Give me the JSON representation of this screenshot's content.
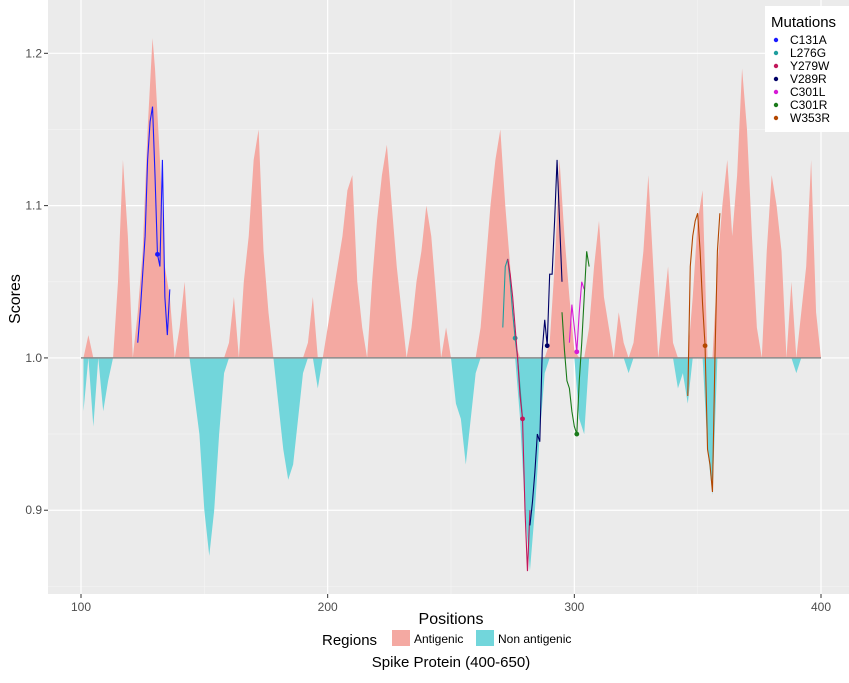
{
  "chart_data": {
    "type": "area",
    "title": "Spike Protein (400-650)",
    "xlabel": "Positions",
    "ylabel": "Scores",
    "xlim": [
      100,
      400
    ],
    "ylim": [
      0.845,
      1.235
    ],
    "baseline": 1.0,
    "grid": true,
    "x_ticks": [
      "100",
      "200",
      "300",
      "400"
    ],
    "y_ticks": [
      "0.9",
      "1.0",
      "1.1",
      "1.2"
    ],
    "x_tick_values": [
      100,
      200,
      300,
      400
    ],
    "y_tick_values": [
      0.9,
      1.0,
      1.1,
      1.2
    ],
    "regions": {
      "title": "Regions",
      "entries": [
        {
          "name": "Antigenic",
          "color": "#f4a9a2"
        },
        {
          "name": "Non antigenic",
          "color": "#72d6db"
        }
      ]
    },
    "scores": {
      "x": [
        101,
        103,
        105,
        107,
        109,
        111,
        113,
        115,
        117,
        119,
        121,
        123,
        125,
        127,
        129,
        130,
        132,
        134,
        136,
        138,
        140,
        142,
        144,
        146,
        148,
        150,
        152,
        154,
        156,
        158,
        160,
        162,
        164,
        166,
        168,
        170,
        172,
        174,
        176,
        178,
        180,
        182,
        184,
        186,
        188,
        190,
        192,
        194,
        196,
        198,
        200,
        202,
        204,
        206,
        208,
        210,
        212,
        214,
        216,
        218,
        220,
        222,
        224,
        226,
        228,
        230,
        232,
        234,
        236,
        238,
        240,
        242,
        244,
        246,
        248,
        250,
        252,
        254,
        256,
        258,
        260,
        262,
        264,
        266,
        268,
        270,
        272,
        274,
        276,
        278,
        280,
        282,
        284,
        286,
        288,
        290,
        292,
        294,
        296,
        298,
        300,
        302,
        304,
        306,
        308,
        310,
        312,
        314,
        316,
        318,
        320,
        322,
        324,
        326,
        328,
        330,
        332,
        334,
        336,
        338,
        340,
        342,
        344,
        346,
        348,
        350,
        352,
        354,
        356,
        358,
        360,
        362,
        364,
        366,
        368,
        370,
        372,
        374,
        376,
        378,
        380,
        382,
        384,
        386,
        388,
        390,
        392,
        394,
        396,
        398,
        400
      ],
      "y": [
        0.965,
        1.015,
        0.955,
        1.0,
        0.965,
        0.985,
        1.0,
        1.05,
        1.13,
        1.08,
        1.0,
        1.03,
        1.07,
        1.15,
        1.21,
        1.19,
        1.13,
        1.06,
        1.04,
        1.0,
        1.02,
        1.05,
        1.0,
        0.975,
        0.95,
        0.9,
        0.87,
        0.9,
        0.95,
        0.99,
        1.01,
        1.04,
        1.0,
        1.05,
        1.08,
        1.13,
        1.15,
        1.07,
        1.03,
        1.0,
        0.97,
        0.94,
        0.92,
        0.93,
        0.96,
        0.99,
        1.01,
        1.04,
        0.98,
        1.0,
        1.02,
        1.04,
        1.06,
        1.08,
        1.11,
        1.12,
        1.05,
        1.02,
        1.0,
        1.05,
        1.09,
        1.12,
        1.14,
        1.1,
        1.06,
        1.03,
        1.0,
        1.02,
        1.05,
        1.07,
        1.1,
        1.08,
        1.04,
        1.0,
        1.02,
        1.0,
        0.97,
        0.96,
        0.93,
        0.96,
        0.99,
        1.02,
        1.06,
        1.1,
        1.13,
        1.15,
        1.1,
        1.06,
        1.01,
        0.96,
        0.9,
        0.86,
        0.9,
        0.95,
        0.99,
        1.01,
        1.06,
        1.13,
        1.08,
        1.04,
        1.005,
        0.96,
        0.95,
        1.02,
        1.06,
        1.09,
        1.04,
        1.02,
        1.0,
        1.03,
        1.01,
        0.99,
        1.01,
        1.04,
        1.07,
        1.12,
        1.06,
        1.0,
        1.03,
        1.06,
        1.01,
        0.98,
        0.99,
        0.97,
        1.04,
        1.09,
        1.11,
        0.94,
        0.91,
        1.06,
        1.1,
        1.13,
        1.08,
        1.12,
        1.19,
        1.15,
        1.08,
        1.02,
        1.0,
        1.07,
        1.12,
        1.1,
        1.07,
        1.0,
        1.05,
        0.99,
        1.03,
        1.06,
        1.13,
        1.03,
        1.0
      ]
    },
    "mutations": {
      "title": "Mutations",
      "series": [
        {
          "name": "C131A",
          "color": "#1a1aff",
          "x": [
            123,
            124,
            126,
            127,
            128,
            129,
            130,
            131,
            132,
            133,
            134,
            135,
            136
          ],
          "y": [
            1.01,
            1.03,
            1.08,
            1.13,
            1.155,
            1.165,
            1.12,
            1.068,
            1.06,
            1.13,
            1.04,
            1.015,
            1.045
          ],
          "mark": [
            131,
            1.068
          ]
        },
        {
          "name": "L276G",
          "color": "#1f9e9e",
          "x": [
            271,
            272,
            273,
            274,
            275,
            276,
            277,
            278,
            279
          ],
          "y": [
            1.02,
            1.06,
            1.065,
            1.05,
            1.03,
            1.013,
            1.0,
            0.98,
            0.96
          ],
          "mark": [
            276,
            1.013
          ]
        },
        {
          "name": "Y279W",
          "color": "#c2185b",
          "x": [
            273,
            274,
            275,
            276,
            277,
            278,
            279,
            280,
            281,
            282
          ],
          "y": [
            1.065,
            1.055,
            1.04,
            1.02,
            1.0,
            0.975,
            0.96,
            0.9,
            0.86,
            0.9
          ],
          "mark": [
            279,
            0.96
          ]
        },
        {
          "name": "V289R",
          "color": "#000066",
          "x": [
            282,
            283,
            284,
            285,
            286,
            287,
            288,
            289,
            290,
            291,
            292,
            293,
            294,
            295
          ],
          "y": [
            0.89,
            0.905,
            0.925,
            0.95,
            0.945,
            1.005,
            1.025,
            1.008,
            1.055,
            1.055,
            1.09,
            1.13,
            1.09,
            1.05
          ],
          "mark": [
            289,
            1.008
          ]
        },
        {
          "name": "C301L",
          "color": "#d61ad6",
          "x": [
            298,
            299,
            300,
            301,
            302,
            303,
            304
          ],
          "y": [
            1.01,
            1.035,
            1.02,
            1.004,
            1.03,
            1.05,
            1.045
          ],
          "mark": [
            301,
            1.004
          ]
        },
        {
          "name": "C301R",
          "color": "#1a7a1a",
          "x": [
            295,
            296,
            297,
            298,
            299,
            300,
            301,
            302,
            303,
            304,
            305,
            306
          ],
          "y": [
            1.03,
            1.005,
            0.985,
            0.98,
            0.965,
            0.955,
            0.95,
            0.985,
            1.01,
            1.04,
            1.07,
            1.06
          ],
          "mark": [
            301,
            0.95
          ]
        },
        {
          "name": "W353R",
          "color": "#b34700",
          "x": [
            346,
            347,
            348,
            349,
            350,
            351,
            352,
            353,
            354,
            355,
            356,
            357,
            358,
            359
          ],
          "y": [
            0.975,
            1.06,
            1.08,
            1.09,
            1.095,
            1.07,
            1.035,
            1.008,
            0.94,
            0.93,
            0.912,
            1.0,
            1.07,
            1.095
          ],
          "mark": [
            353,
            1.008
          ]
        }
      ]
    }
  }
}
